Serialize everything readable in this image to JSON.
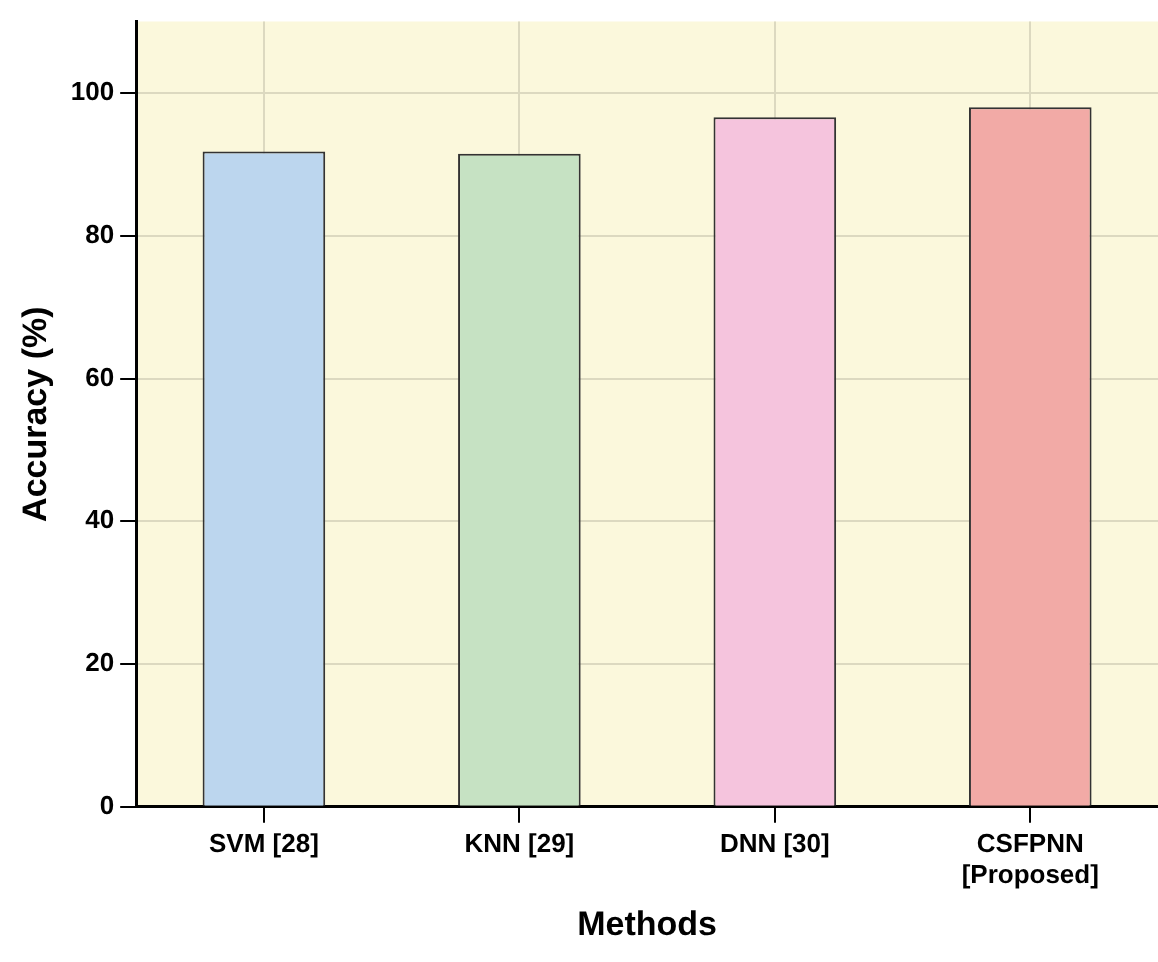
{
  "chart_data": {
    "type": "bar",
    "xlabel": "Methods",
    "ylabel": "Accuracy (%)",
    "categories": [
      "SVM [28]",
      "KNN [29]",
      "DNN [30]",
      "CSFPNN\n[Proposed]"
    ],
    "values": [
      91.8,
      91.5,
      96.6,
      98.0
    ],
    "colors": [
      "#bcd6ee",
      "#c6e2c3",
      "#f5c4dd",
      "#f2aaa6"
    ],
    "ylim": [
      0,
      110
    ],
    "yticks": [
      0,
      20,
      40,
      60,
      80,
      100
    ],
    "grid": true
  }
}
